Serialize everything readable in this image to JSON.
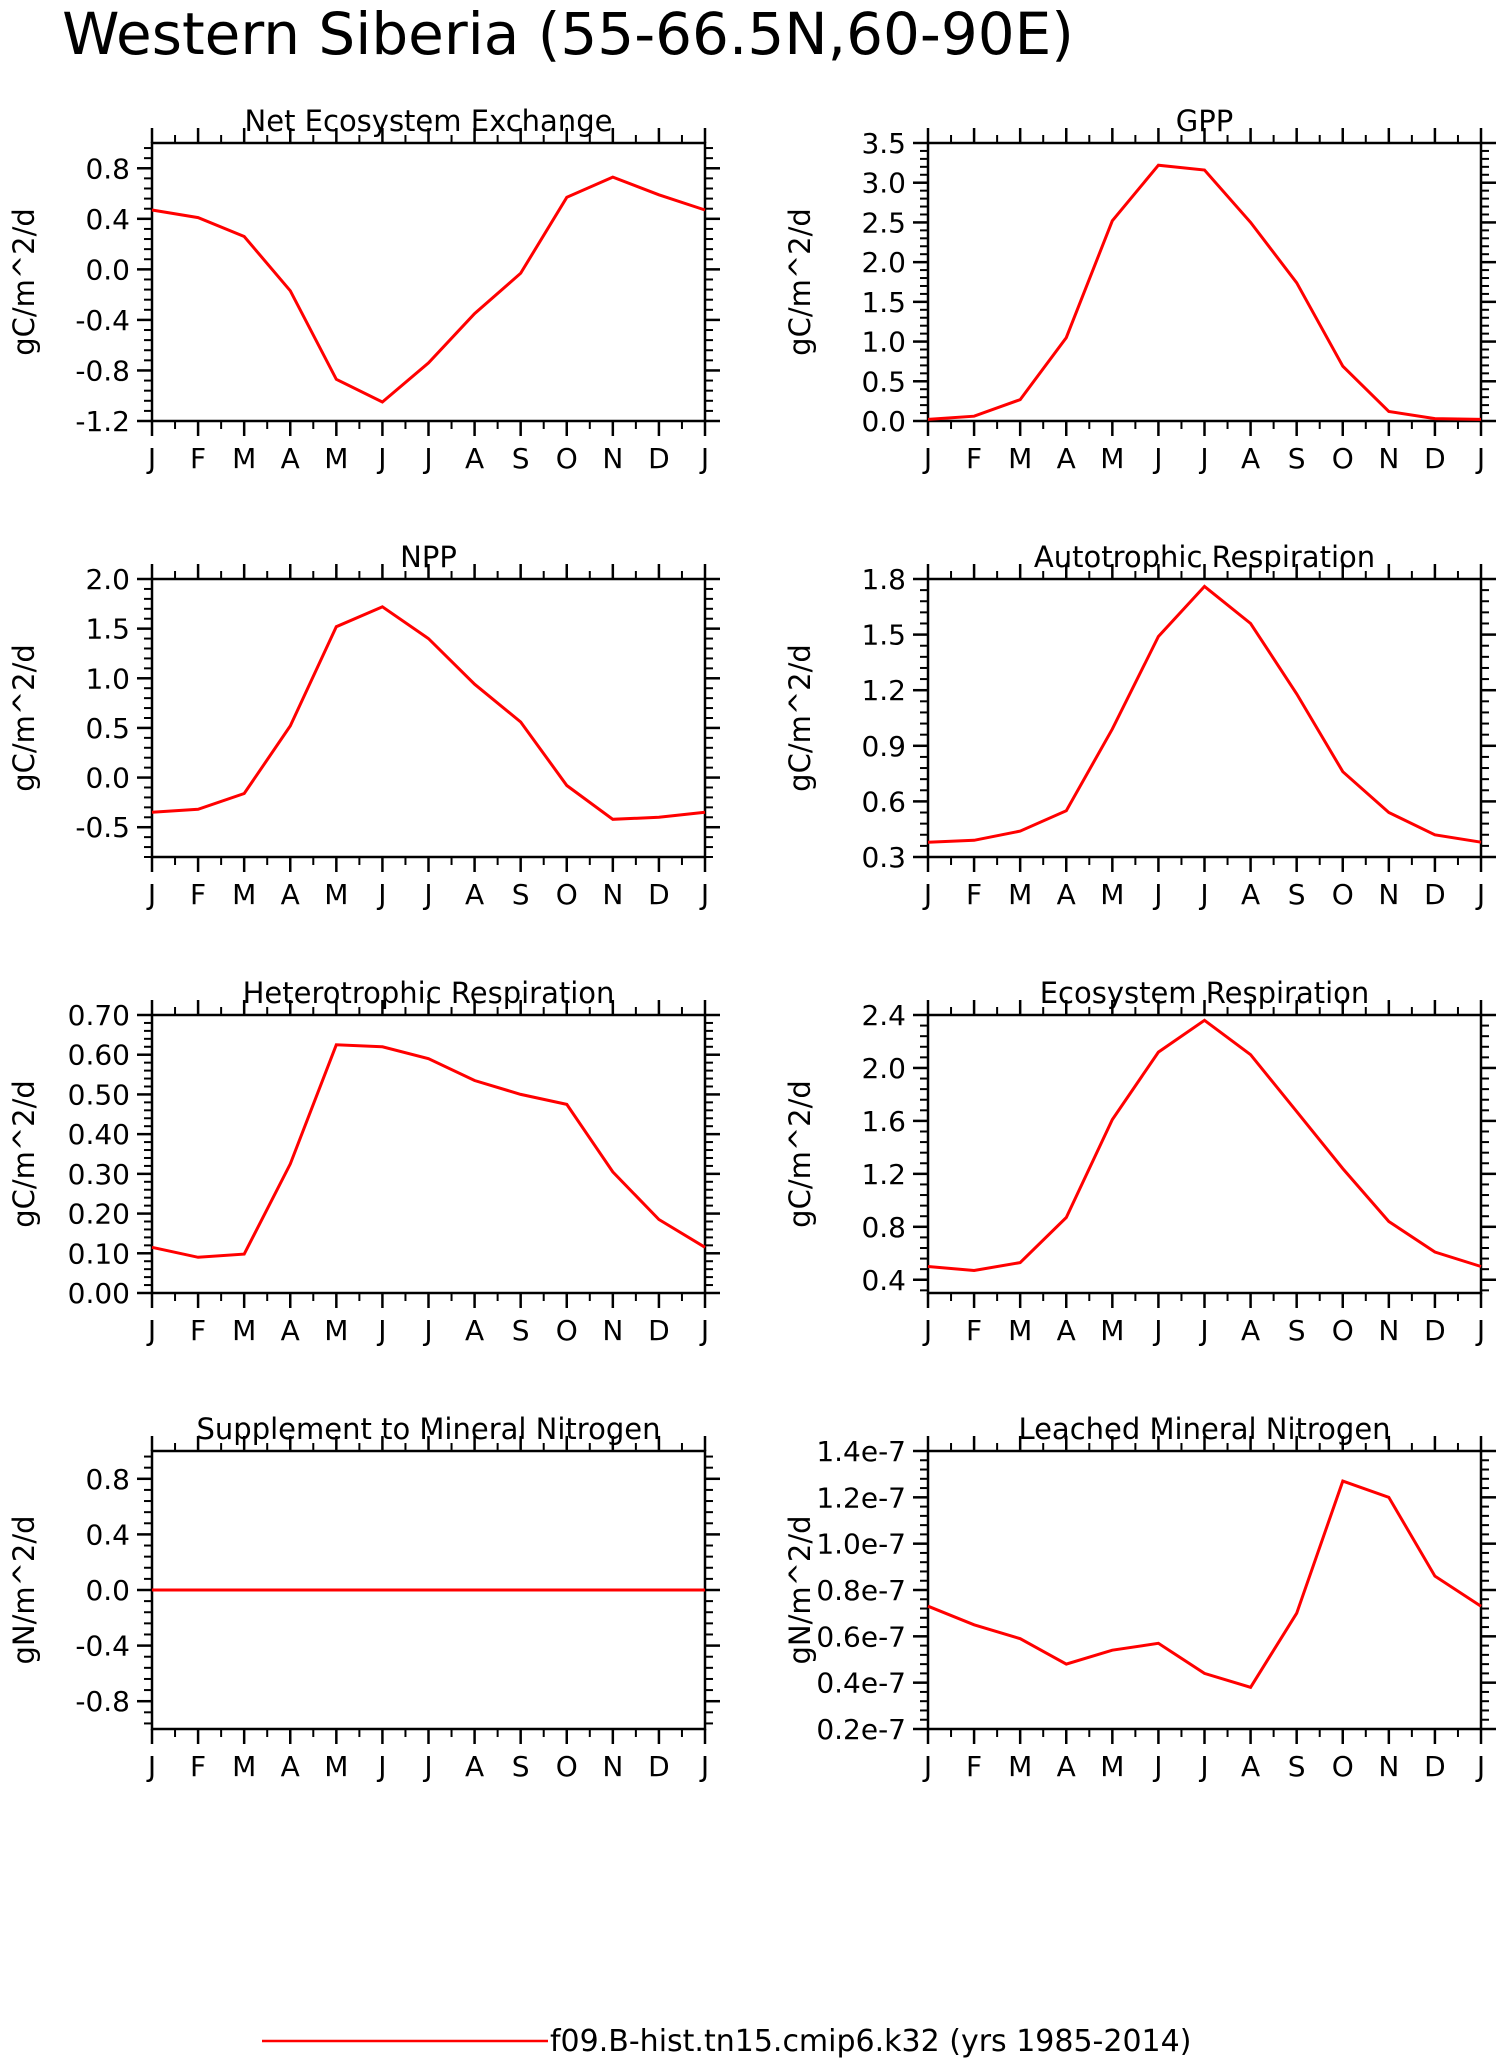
{
  "figure": {
    "title": "Western Siberia (55-66.5N,60-90E)",
    "line_color": "#ff0000",
    "legend": {
      "label": "f09.B-hist.tn15.cmip6.k32 (yrs 1985-2014)",
      "color": "#ff0000"
    }
  },
  "chart_data": [
    {
      "type": "line",
      "title": "Net Ecosystem Exchange",
      "ylabel": "gC/m^2/d",
      "categories": [
        "J",
        "F",
        "M",
        "A",
        "M",
        "J",
        "J",
        "A",
        "S",
        "O",
        "N",
        "D",
        "J"
      ],
      "ylim": [
        -1.2,
        1.0
      ],
      "yticks": [
        -1.2,
        -0.8,
        -0.4,
        0.0,
        0.4,
        0.8
      ],
      "ytick_labels": [
        "-1.2",
        "-0.8",
        "-0.4",
        "0.0",
        "0.4",
        "0.8"
      ],
      "series": [
        {
          "values": [
            0.47,
            0.41,
            0.26,
            -0.17,
            -0.87,
            -1.05,
            -0.74,
            -0.35,
            -0.03,
            0.57,
            0.73,
            0.59,
            0.47
          ]
        }
      ]
    },
    {
      "type": "line",
      "title": "GPP",
      "ylabel": "gC/m^2/d",
      "categories": [
        "J",
        "F",
        "M",
        "A",
        "M",
        "J",
        "J",
        "A",
        "S",
        "O",
        "N",
        "D",
        "J"
      ],
      "ylim": [
        0.0,
        3.5
      ],
      "yticks": [
        0.0,
        0.5,
        1.0,
        1.5,
        2.0,
        2.5,
        3.0,
        3.5
      ],
      "ytick_labels": [
        "0.0",
        "0.5",
        "1.0",
        "1.5",
        "2.0",
        "2.5",
        "3.0",
        "3.5"
      ],
      "series": [
        {
          "values": [
            0.02,
            0.06,
            0.27,
            1.05,
            2.52,
            3.22,
            3.16,
            2.5,
            1.74,
            0.69,
            0.12,
            0.03,
            0.02
          ]
        }
      ]
    },
    {
      "type": "line",
      "title": "NPP",
      "ylabel": "gC/m^2/d",
      "categories": [
        "J",
        "F",
        "M",
        "A",
        "M",
        "J",
        "J",
        "A",
        "S",
        "O",
        "N",
        "D",
        "J"
      ],
      "ylim": [
        -0.8,
        2.0
      ],
      "yticks": [
        -0.5,
        0.0,
        0.5,
        1.0,
        1.5,
        2.0
      ],
      "ytick_labels": [
        "-0.5",
        "0.0",
        "0.5",
        "1.0",
        "1.5",
        "2.0"
      ],
      "series": [
        {
          "values": [
            -0.35,
            -0.32,
            -0.16,
            0.52,
            1.52,
            1.72,
            1.4,
            0.94,
            0.56,
            -0.08,
            -0.42,
            -0.4,
            -0.35
          ]
        }
      ]
    },
    {
      "type": "line",
      "title": "Autotrophic Respiration",
      "ylabel": "gC/m^2/d",
      "categories": [
        "J",
        "F",
        "M",
        "A",
        "M",
        "J",
        "J",
        "A",
        "S",
        "O",
        "N",
        "D",
        "J"
      ],
      "ylim": [
        0.3,
        1.8
      ],
      "yticks": [
        0.3,
        0.6,
        0.9,
        1.2,
        1.5,
        1.8
      ],
      "ytick_labels": [
        "0.3",
        "0.6",
        "0.9",
        "1.2",
        "1.5",
        "1.8"
      ],
      "series": [
        {
          "values": [
            0.38,
            0.39,
            0.44,
            0.55,
            0.99,
            1.49,
            1.76,
            1.56,
            1.18,
            0.76,
            0.54,
            0.42,
            0.38
          ]
        }
      ]
    },
    {
      "type": "line",
      "title": "Heterotrophic Respiration",
      "ylabel": "gC/m^2/d",
      "categories": [
        "J",
        "F",
        "M",
        "A",
        "M",
        "J",
        "J",
        "A",
        "S",
        "O",
        "N",
        "D",
        "J"
      ],
      "ylim": [
        0.0,
        0.7
      ],
      "yticks": [
        0.0,
        0.1,
        0.2,
        0.3,
        0.4,
        0.5,
        0.6,
        0.7
      ],
      "ytick_labels": [
        "0.00",
        "0.10",
        "0.20",
        "0.30",
        "0.40",
        "0.50",
        "0.60",
        "0.70"
      ],
      "series": [
        {
          "values": [
            0.115,
            0.09,
            0.098,
            0.325,
            0.625,
            0.62,
            0.59,
            0.535,
            0.5,
            0.475,
            0.305,
            0.185,
            0.115
          ]
        }
      ]
    },
    {
      "type": "line",
      "title": "Ecosystem Respiration",
      "ylabel": "gC/m^2/d",
      "categories": [
        "J",
        "F",
        "M",
        "A",
        "M",
        "J",
        "J",
        "A",
        "S",
        "O",
        "N",
        "D",
        "J"
      ],
      "ylim": [
        0.3,
        2.4
      ],
      "yticks": [
        0.4,
        0.8,
        1.2,
        1.6,
        2.0,
        2.4
      ],
      "ytick_labels": [
        "0.4",
        "0.8",
        "1.2",
        "1.6",
        "2.0",
        "2.4"
      ],
      "series": [
        {
          "values": [
            0.5,
            0.47,
            0.53,
            0.87,
            1.61,
            2.12,
            2.36,
            2.1,
            1.67,
            1.24,
            0.84,
            0.61,
            0.5
          ]
        }
      ]
    },
    {
      "type": "line",
      "title": "Supplement to Mineral Nitrogen",
      "ylabel": "gN/m^2/d",
      "categories": [
        "J",
        "F",
        "M",
        "A",
        "M",
        "J",
        "J",
        "A",
        "S",
        "O",
        "N",
        "D",
        "J"
      ],
      "ylim": [
        -1.0,
        1.0
      ],
      "yticks": [
        -0.8,
        -0.4,
        0.0,
        0.4,
        0.8
      ],
      "ytick_labels": [
        "-0.8",
        "-0.4",
        "0.0",
        "0.4",
        "0.8"
      ],
      "series": [
        {
          "values": [
            0,
            0,
            0,
            0,
            0,
            0,
            0,
            0,
            0,
            0,
            0,
            0,
            0
          ]
        }
      ]
    },
    {
      "type": "line",
      "title": "Leached Mineral Nitrogen",
      "ylabel": "gN/m^2/d",
      "categories": [
        "J",
        "F",
        "M",
        "A",
        "M",
        "J",
        "J",
        "A",
        "S",
        "O",
        "N",
        "D",
        "J"
      ],
      "ylim": [
        2e-08,
        1.4e-07
      ],
      "yticks": [
        2e-08,
        4e-08,
        6e-08,
        8e-08,
        1e-07,
        1.2e-07,
        1.4e-07
      ],
      "ytick_labels": [
        "0.2e-7",
        "0.4e-7",
        "0.6e-7",
        "0.8e-7",
        "1.0e-7",
        "1.2e-7",
        "1.4e-7"
      ],
      "series": [
        {
          "values": [
            7.3e-08,
            6.5e-08,
            5.9e-08,
            4.8e-08,
            5.4e-08,
            5.7e-08,
            4.4e-08,
            3.8e-08,
            7e-08,
            1.27e-07,
            1.2e-07,
            8.6e-08,
            7.3e-08
          ]
        }
      ]
    }
  ]
}
